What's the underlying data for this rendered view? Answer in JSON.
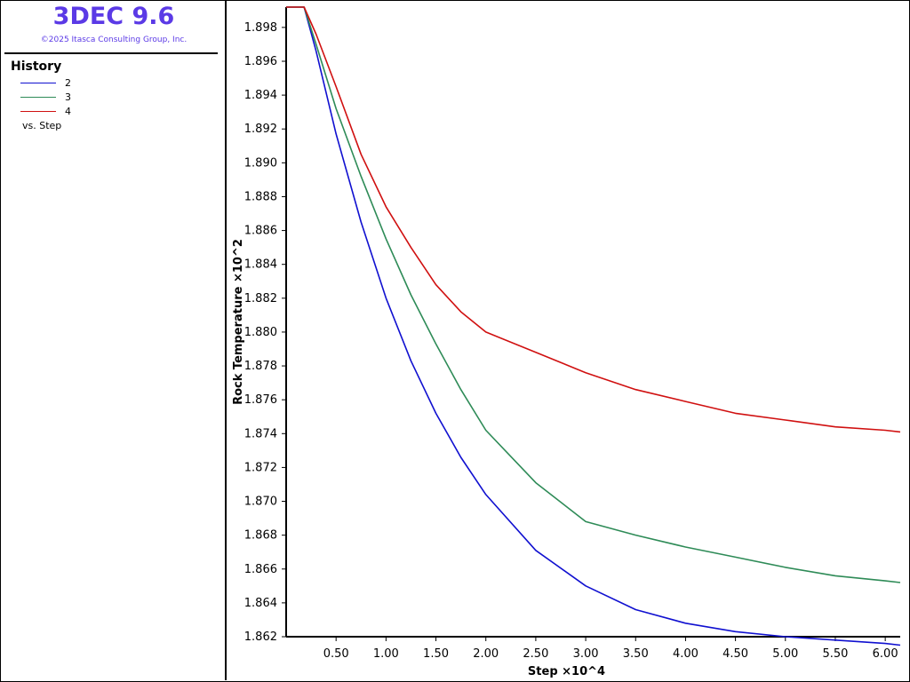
{
  "app": {
    "title": "3DEC 9.6",
    "copyright": "©2025 Itasca Consulting Group, Inc."
  },
  "legend": {
    "heading": "History",
    "vs_label": "vs. Step",
    "items": [
      {
        "label": "2",
        "color": "#1010d0"
      },
      {
        "label": "3",
        "color": "#2e8b57"
      },
      {
        "label": "4",
        "color": "#d01010"
      }
    ]
  },
  "chart_data": {
    "type": "line",
    "xlabel": "Step ×10^4",
    "ylabel": "Rock Temperature ×10^2",
    "xlim": [
      0,
      6.15
    ],
    "ylim": [
      1.862,
      1.8992
    ],
    "xticks": [
      "0.50",
      "1.00",
      "1.50",
      "2.00",
      "2.50",
      "3.00",
      "3.50",
      "4.00",
      "4.50",
      "5.00",
      "5.50",
      "6.00"
    ],
    "yticks": [
      "1.862",
      "1.864",
      "1.866",
      "1.868",
      "1.870",
      "1.872",
      "1.874",
      "1.876",
      "1.878",
      "1.880",
      "1.882",
      "1.884",
      "1.886",
      "1.888",
      "1.890",
      "1.892",
      "1.894",
      "1.896",
      "1.898"
    ],
    "grid": false,
    "series": [
      {
        "name": "2",
        "color": "#1010d0",
        "x": [
          0,
          0.18,
          0.3,
          0.5,
          0.75,
          1.0,
          1.25,
          1.5,
          1.75,
          2.0,
          2.5,
          3.0,
          3.5,
          4.0,
          4.5,
          5.0,
          5.5,
          6.0,
          6.15
        ],
        "y": [
          1.8992,
          1.8992,
          1.8966,
          1.8917,
          1.8865,
          1.882,
          1.8783,
          1.8752,
          1.8726,
          1.8704,
          1.8671,
          1.865,
          1.8636,
          1.8628,
          1.8623,
          1.862,
          1.8618,
          1.8616,
          1.8615
        ]
      },
      {
        "name": "3",
        "color": "#2e8b57",
        "x": [
          0,
          0.18,
          0.3,
          0.5,
          0.75,
          1.0,
          1.25,
          1.5,
          1.75,
          2.0,
          2.5,
          3.0,
          3.5,
          4.0,
          4.5,
          5.0,
          5.5,
          6.0,
          6.15
        ],
        "y": [
          1.8992,
          1.8992,
          1.897,
          1.8932,
          1.8892,
          1.8855,
          1.8822,
          1.8793,
          1.8766,
          1.8742,
          1.8711,
          1.8688,
          1.868,
          1.8673,
          1.8667,
          1.8661,
          1.8656,
          1.8653,
          1.8652
        ]
      },
      {
        "name": "4",
        "color": "#d01010",
        "x": [
          0,
          0.18,
          0.3,
          0.5,
          0.75,
          1.0,
          1.25,
          1.5,
          1.75,
          2.0,
          2.5,
          3.0,
          3.5,
          4.0,
          4.5,
          5.0,
          5.5,
          6.0,
          6.15
        ],
        "y": [
          1.8992,
          1.8992,
          1.8976,
          1.8945,
          1.8905,
          1.8874,
          1.885,
          1.8828,
          1.8812,
          1.88,
          1.8788,
          1.8776,
          1.8766,
          1.8759,
          1.8752,
          1.8748,
          1.8744,
          1.8742,
          1.8741
        ]
      }
    ]
  }
}
